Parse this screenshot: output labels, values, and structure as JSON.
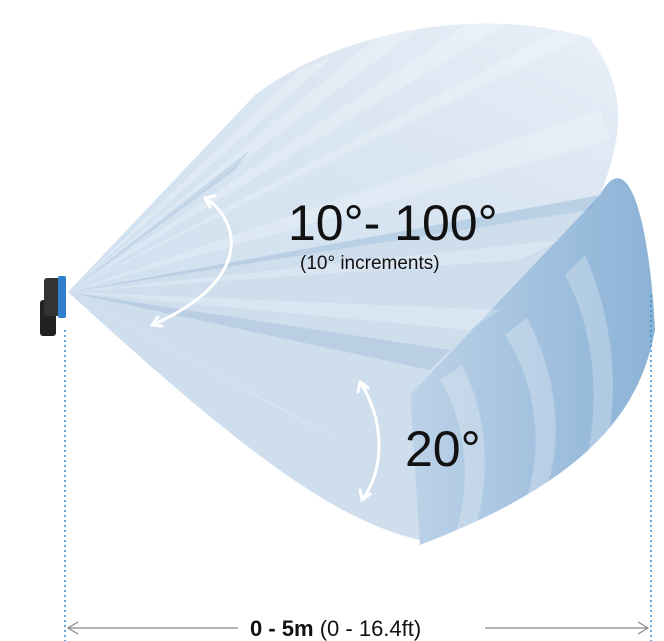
{
  "colors": {
    "beam_light": "#dfe9f4",
    "beam_mid": "#b9d0e6",
    "beam_dark": "#7fa8cf",
    "sensor_blue": "#2f7fd0",
    "sensor_body": "#2a2a2a",
    "arrow_white": "#ffffff",
    "dim_line": "#3a8fd0",
    "text": "#111111"
  },
  "icons": {
    "sensor": "radar-sensor-icon"
  },
  "labels": {
    "horizontal_angle": "10°- 100°",
    "increment_note": "(10° increments)",
    "vertical_angle": "20°",
    "range_metric": "0 - 5m",
    "range_imperial": "(0 - 16.4ft)"
  },
  "measurements": {
    "horizontal_fov_min_deg": 10,
    "horizontal_fov_max_deg": 100,
    "horizontal_fov_increment_deg": 10,
    "vertical_fov_deg": 20,
    "range_min_m": 0,
    "range_max_m": 5,
    "range_min_ft": 0,
    "range_max_ft": 16.4
  }
}
